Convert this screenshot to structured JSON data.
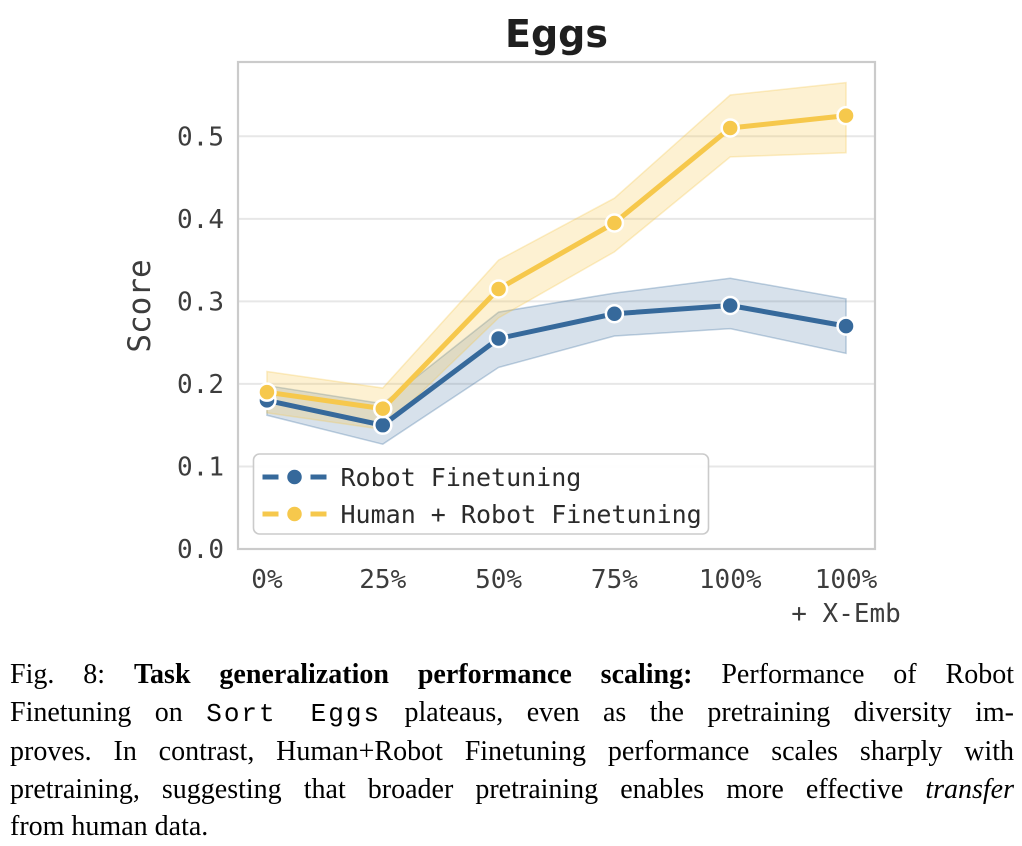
{
  "chart_data": {
    "type": "line",
    "title": "Eggs",
    "xlabel": "",
    "ylabel": "Score",
    "categories": [
      "0%",
      "25%",
      "50%",
      "75%",
      "100%",
      "100%"
    ],
    "x_sublabels": [
      "",
      "",
      "",
      "",
      "",
      "+ X-Emb"
    ],
    "ylim": [
      0,
      0.59
    ],
    "yticks": [
      0.0,
      0.1,
      0.2,
      0.3,
      0.4,
      0.5
    ],
    "grid": true,
    "legend_position": "lower-left",
    "series": [
      {
        "name": "Robot Finetuning",
        "color": "#36699B",
        "values": [
          0.18,
          0.15,
          0.255,
          0.285,
          0.295,
          0.27
        ],
        "band_lower": [
          0.162,
          0.127,
          0.22,
          0.258,
          0.267,
          0.237
        ],
        "band_upper": [
          0.198,
          0.176,
          0.287,
          0.31,
          0.328,
          0.303
        ],
        "band_opacity": 0.2
      },
      {
        "name": "Human + Robot Finetuning",
        "color": "#F6C84C",
        "values": [
          0.19,
          0.17,
          0.315,
          0.395,
          0.51,
          0.525
        ],
        "band_lower": [
          0.165,
          0.145,
          0.28,
          0.36,
          0.475,
          0.48
        ],
        "band_upper": [
          0.215,
          0.195,
          0.35,
          0.425,
          0.55,
          0.565
        ],
        "band_opacity": 0.25
      }
    ],
    "colors": {
      "grid": "#E7E7E7",
      "spine": "#CBCBCB",
      "tick_text": "#3D3D3D",
      "title_text": "#1F1F1F"
    }
  },
  "caption": {
    "lines": [
      {
        "justify": true,
        "segments": [
          {
            "text": "Fig. 8: ",
            "style": "plain"
          },
          {
            "text": "Task generalization performance scaling:",
            "style": "bold"
          },
          {
            "text": " Performance of Robot",
            "style": "plain"
          }
        ]
      },
      {
        "justify": true,
        "segments": [
          {
            "text": "Finetuning on ",
            "style": "plain"
          },
          {
            "text": "Sort Eggs",
            "style": "mono"
          },
          {
            "text": " plateaus, even as the pretraining diversity im-",
            "style": "plain"
          }
        ]
      },
      {
        "justify": true,
        "segments": [
          {
            "text": "proves. In contrast, Human+Robot Finetuning performance scales sharply with",
            "style": "plain"
          }
        ]
      },
      {
        "justify": true,
        "segments": [
          {
            "text": "pretraining, suggesting that broader pretraining enables more effective ",
            "style": "plain"
          },
          {
            "text": "transfer",
            "style": "italic"
          }
        ]
      },
      {
        "justify": false,
        "segments": [
          {
            "text": "from human data.",
            "style": "plain"
          }
        ]
      }
    ]
  }
}
